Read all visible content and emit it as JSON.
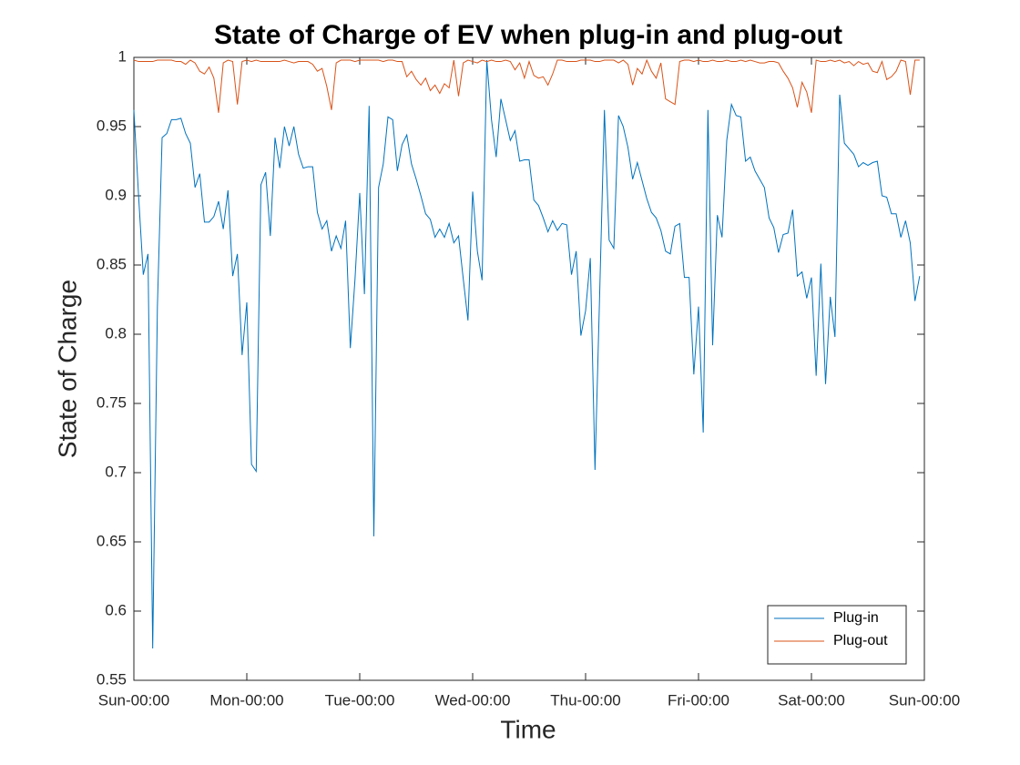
{
  "chart_data": {
    "type": "line",
    "title": "State of Charge of EV when plug-in and plug-out",
    "xlabel": "Time",
    "ylabel": "State of Charge",
    "x": [
      0,
      1,
      2,
      3,
      4,
      5,
      6,
      7,
      8,
      9,
      10,
      11,
      12,
      13,
      14,
      15,
      16,
      17,
      18,
      19,
      20,
      21,
      22,
      23,
      24,
      25,
      26,
      27,
      28,
      29,
      30,
      31,
      32,
      33,
      34,
      35,
      36,
      37,
      38,
      39,
      40,
      41,
      42,
      43,
      44,
      45,
      46,
      47,
      48,
      49,
      50,
      51,
      52,
      53,
      54,
      55,
      56,
      57,
      58,
      59,
      60,
      61,
      62,
      63,
      64,
      65,
      66,
      67,
      68,
      69,
      70,
      71,
      72,
      73,
      74,
      75,
      76,
      77,
      78,
      79,
      80,
      81,
      82,
      83,
      84,
      85,
      86,
      87,
      88,
      89,
      90,
      91,
      92,
      93,
      94,
      95,
      96,
      97,
      98,
      99,
      100,
      101,
      102,
      103,
      104,
      105,
      106,
      107,
      108,
      109,
      110,
      111,
      112,
      113,
      114,
      115,
      116,
      117,
      118,
      119,
      120,
      121,
      122,
      123,
      124,
      125,
      126,
      127,
      128,
      129,
      130,
      131,
      132,
      133,
      134,
      135,
      136,
      137,
      138,
      139,
      140,
      141,
      142,
      143,
      144,
      145,
      146,
      147,
      148,
      149,
      150,
      151,
      152,
      153,
      154,
      155,
      156,
      157,
      158,
      159,
      160,
      161,
      162,
      163,
      164,
      165,
      166,
      167
    ],
    "series": [
      {
        "name": "Plug-in",
        "color": "#0072bd",
        "values": [
          0.962,
          0.9,
          0.843,
          0.858,
          0.573,
          0.82,
          0.942,
          0.945,
          0.955,
          0.955,
          0.956,
          0.945,
          0.938,
          0.906,
          0.916,
          0.881,
          0.881,
          0.885,
          0.896,
          0.876,
          0.904,
          0.842,
          0.858,
          0.785,
          0.823,
          0.706,
          0.701,
          0.908,
          0.917,
          0.871,
          0.942,
          0.92,
          0.95,
          0.936,
          0.95,
          0.93,
          0.92,
          0.921,
          0.921,
          0.888,
          0.876,
          0.882,
          0.86,
          0.871,
          0.862,
          0.882,
          0.79,
          0.84,
          0.902,
          0.829,
          0.965,
          0.654,
          0.906,
          0.923,
          0.957,
          0.955,
          0.918,
          0.937,
          0.944,
          0.923,
          0.912,
          0.9,
          0.887,
          0.883,
          0.87,
          0.876,
          0.87,
          0.88,
          0.866,
          0.871,
          0.84,
          0.81,
          0.903,
          0.86,
          0.839,
          0.998,
          0.955,
          0.928,
          0.97,
          0.955,
          0.94,
          0.947,
          0.925,
          0.926,
          0.926,
          0.897,
          0.893,
          0.884,
          0.874,
          0.882,
          0.875,
          0.88,
          0.879,
          0.843,
          0.86,
          0.799,
          0.817,
          0.855,
          0.702,
          0.83,
          0.962,
          0.868,
          0.862,
          0.958,
          0.95,
          0.935,
          0.912,
          0.924,
          0.911,
          0.898,
          0.888,
          0.884,
          0.875,
          0.86,
          0.858,
          0.878,
          0.88,
          0.841,
          0.841,
          0.771,
          0.82,
          0.729,
          0.962,
          0.792,
          0.886,
          0.87,
          0.94,
          0.966,
          0.958,
          0.957,
          0.925,
          0.928,
          0.918,
          0.912,
          0.906,
          0.884,
          0.877,
          0.859,
          0.872,
          0.873,
          0.89,
          0.842,
          0.845,
          0.826,
          0.841,
          0.77,
          0.851,
          0.764,
          0.827,
          0.798,
          0.973,
          0.938,
          0.934,
          0.93,
          0.921,
          0.924,
          0.922,
          0.924,
          0.925,
          0.9,
          0.899,
          0.887,
          0.887,
          0.87,
          0.882,
          0.866,
          0.824,
          0.842
        ]
      },
      {
        "name": "Plug-out",
        "color": "#d95319",
        "values": [
          0.998,
          0.997,
          0.997,
          0.997,
          0.997,
          0.998,
          0.998,
          0.998,
          0.998,
          0.997,
          0.997,
          0.995,
          0.998,
          0.996,
          0.99,
          0.988,
          0.993,
          0.985,
          0.96,
          0.996,
          0.998,
          0.997,
          0.966,
          0.997,
          0.998,
          0.997,
          0.998,
          0.997,
          0.997,
          0.997,
          0.997,
          0.997,
          0.998,
          0.997,
          0.996,
          0.997,
          0.997,
          0.997,
          0.995,
          0.99,
          0.992,
          0.979,
          0.962,
          0.996,
          0.998,
          0.998,
          0.998,
          0.997,
          0.998,
          0.998,
          0.998,
          0.998,
          0.998,
          0.997,
          0.998,
          0.998,
          0.997,
          0.997,
          0.986,
          0.99,
          0.984,
          0.98,
          0.985,
          0.976,
          0.98,
          0.974,
          0.981,
          0.978,
          0.998,
          0.972,
          0.996,
          0.998,
          0.997,
          0.996,
          0.998,
          0.997,
          0.998,
          0.997,
          0.997,
          0.998,
          0.997,
          0.991,
          0.996,
          0.985,
          0.997,
          0.987,
          0.985,
          0.986,
          0.98,
          0.988,
          0.998,
          0.998,
          0.997,
          0.997,
          0.997,
          0.998,
          0.998,
          0.998,
          0.997,
          0.997,
          0.998,
          0.998,
          0.998,
          0.996,
          0.998,
          0.995,
          0.98,
          0.992,
          0.988,
          0.998,
          0.99,
          0.985,
          0.996,
          0.97,
          0.968,
          0.966,
          0.997,
          0.998,
          0.998,
          0.997,
          0.998,
          0.997,
          0.997,
          0.998,
          0.997,
          0.997,
          0.998,
          0.997,
          0.997,
          0.998,
          0.997,
          0.998,
          0.997,
          0.996,
          0.996,
          0.997,
          0.997,
          0.996,
          0.99,
          0.985,
          0.978,
          0.964,
          0.982,
          0.975,
          0.96,
          0.998,
          0.997,
          0.997,
          0.998,
          0.997,
          0.998,
          0.996,
          0.997,
          0.994,
          0.997,
          0.995,
          0.996,
          0.99,
          0.989,
          0.997,
          0.984,
          0.986,
          0.99,
          0.998,
          0.997,
          0.973,
          0.998,
          0.998
        ]
      }
    ],
    "xlim": [
      0,
      168
    ],
    "xticks": [
      {
        "value": 0,
        "label": "Sun-00:00"
      },
      {
        "value": 24,
        "label": "Mon-00:00"
      },
      {
        "value": 48,
        "label": "Tue-00:00"
      },
      {
        "value": 72,
        "label": "Wed-00:00"
      },
      {
        "value": 96,
        "label": "Thu-00:00"
      },
      {
        "value": 120,
        "label": "Fri-00:00"
      },
      {
        "value": 144,
        "label": "Sat-00:00"
      },
      {
        "value": 168,
        "label": "Sun-00:00"
      }
    ],
    "ylim": [
      0.55,
      1
    ],
    "yticks": [
      0.55,
      0.6,
      0.65,
      0.7,
      0.75,
      0.8,
      0.85,
      0.9,
      0.95,
      1
    ],
    "grid": false,
    "legend": "bottom-right"
  }
}
